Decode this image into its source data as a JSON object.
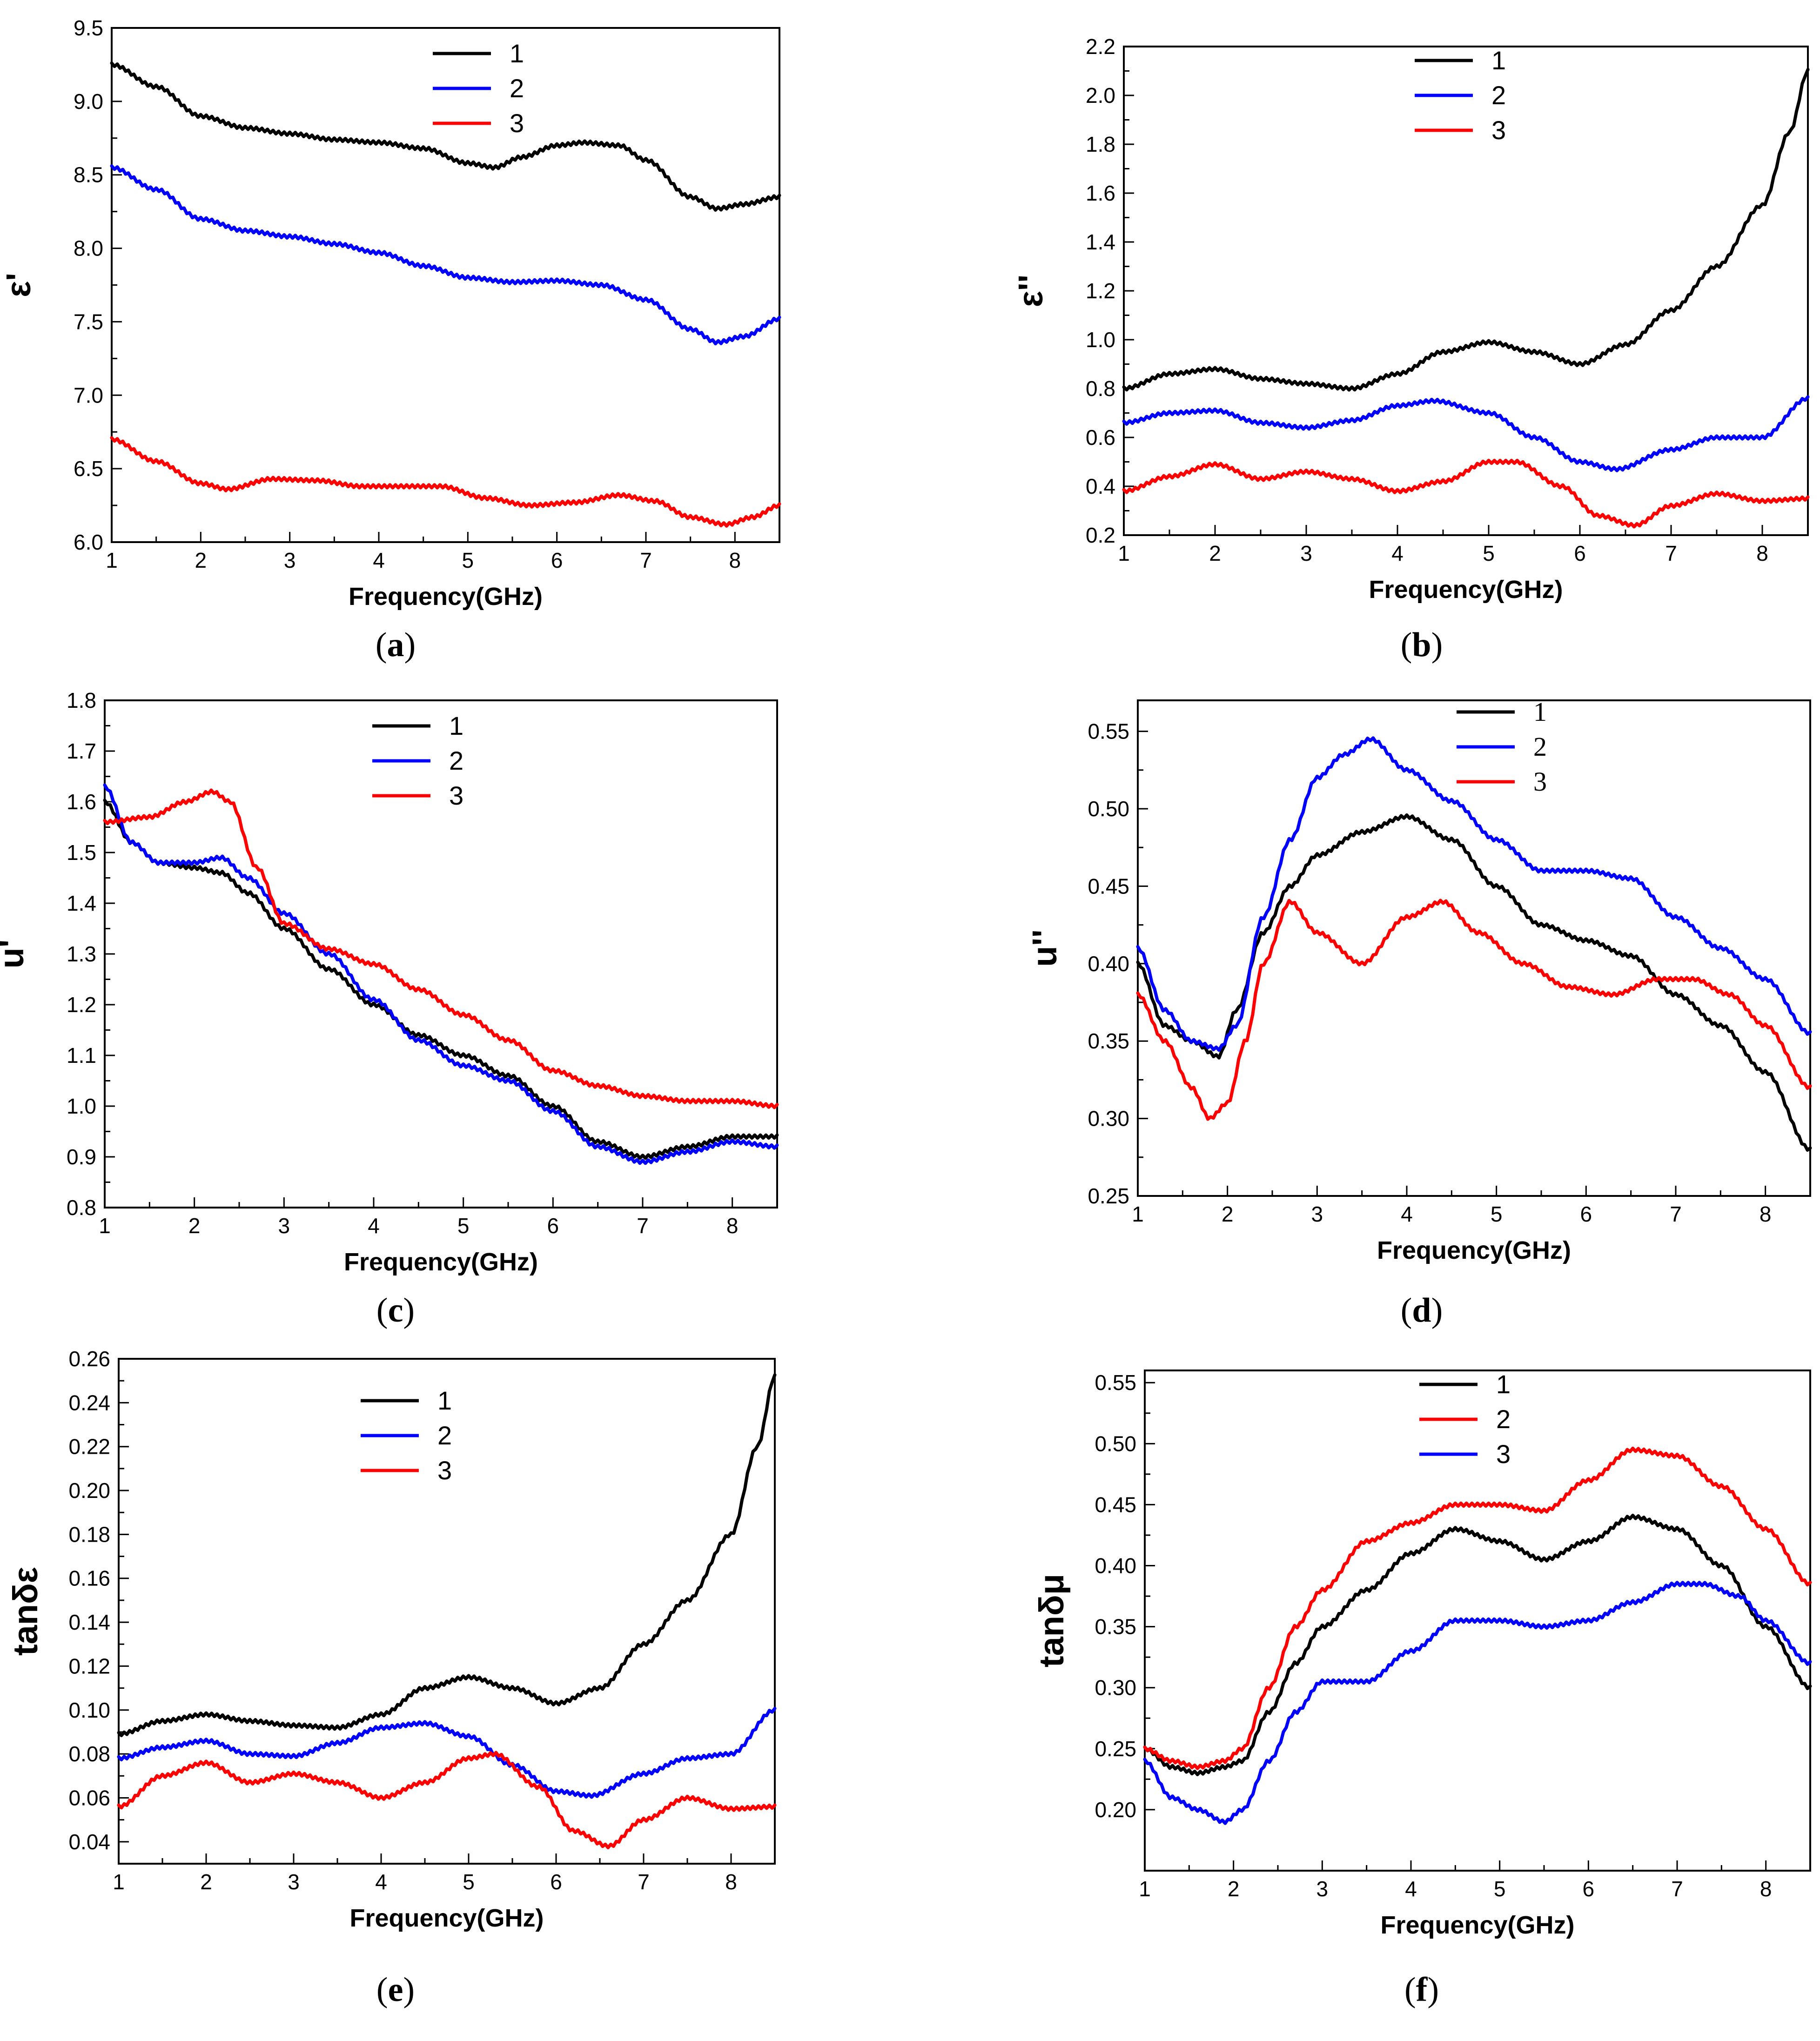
{
  "chart_data": [
    {
      "type": "line",
      "panel": "(a)",
      "caption_letter": "a",
      "xlabel": "Frequency(GHz)",
      "ylabel": "ε'",
      "xlim": [
        1,
        8.5
      ],
      "ylim": [
        6.0,
        9.5
      ],
      "xticks": [
        1,
        2,
        3,
        4,
        5,
        6,
        7,
        8
      ],
      "yticks": [
        6.0,
        6.5,
        7.0,
        7.5,
        8.0,
        8.5,
        9.0,
        9.5
      ],
      "ytick_decimals": 1,
      "legend_position": "top-center",
      "legend_font": "sans",
      "series": [
        {
          "name": "1",
          "color": "#000000",
          "x": [
            1,
            1.5,
            2,
            2.5,
            3,
            3.5,
            4,
            4.5,
            5,
            5.3,
            5.6,
            6,
            6.3,
            6.7,
            7,
            7.5,
            7.8,
            8.1,
            8.5
          ],
          "y": [
            9.25,
            9.1,
            8.9,
            8.82,
            8.78,
            8.74,
            8.72,
            8.68,
            8.58,
            8.55,
            8.62,
            8.7,
            8.72,
            8.7,
            8.6,
            8.35,
            8.27,
            8.3,
            8.35
          ]
        },
        {
          "name": "2",
          "color": "#0000ff",
          "x": [
            1,
            1.5,
            2,
            2.5,
            3,
            3.5,
            4,
            4.5,
            5,
            5.5,
            6,
            6.5,
            7,
            7.5,
            7.8,
            8.1,
            8.5
          ],
          "y": [
            8.55,
            8.4,
            8.2,
            8.12,
            8.08,
            8.03,
            7.97,
            7.88,
            7.8,
            7.77,
            7.78,
            7.75,
            7.65,
            7.45,
            7.36,
            7.4,
            7.52
          ]
        },
        {
          "name": "3",
          "color": "#ff0000",
          "x": [
            1,
            1.5,
            2,
            2.3,
            2.8,
            3.3,
            3.8,
            4.3,
            4.7,
            5.2,
            5.7,
            6.2,
            6.7,
            7.1,
            7.5,
            7.9,
            8.2,
            8.5
          ],
          "y": [
            6.7,
            6.55,
            6.4,
            6.36,
            6.43,
            6.42,
            6.38,
            6.38,
            6.38,
            6.3,
            6.25,
            6.27,
            6.32,
            6.28,
            6.17,
            6.12,
            6.17,
            6.25
          ]
        }
      ]
    },
    {
      "type": "line",
      "panel": "(b)",
      "caption_letter": "b",
      "xlabel": "Frequency(GHz)",
      "ylabel": "ε''",
      "xlim": [
        1,
        8.5
      ],
      "ylim": [
        0.2,
        2.2
      ],
      "xticks": [
        1,
        2,
        3,
        4,
        5,
        6,
        7,
        8
      ],
      "yticks": [
        0.2,
        0.4,
        0.6,
        0.8,
        1.0,
        1.2,
        1.4,
        1.6,
        1.8,
        2.0,
        2.2
      ],
      "ytick_decimals": 1,
      "legend_position": "top-center",
      "legend_font": "sans",
      "series": [
        {
          "name": "1",
          "color": "#000000",
          "x": [
            1,
            1.5,
            2,
            2.5,
            3,
            3.5,
            4,
            4.5,
            5,
            5.5,
            6,
            6.5,
            7,
            7.5,
            8,
            8.3,
            8.5
          ],
          "y": [
            0.8,
            0.86,
            0.88,
            0.84,
            0.82,
            0.8,
            0.86,
            0.95,
            0.99,
            0.95,
            0.9,
            0.98,
            1.12,
            1.3,
            1.55,
            1.85,
            2.1
          ]
        },
        {
          "name": "2",
          "color": "#0000ff",
          "x": [
            1,
            1.5,
            2,
            2.5,
            3,
            3.5,
            4,
            4.4,
            5,
            5.5,
            6,
            6.4,
            7,
            7.5,
            8,
            8.5
          ],
          "y": [
            0.66,
            0.7,
            0.71,
            0.66,
            0.64,
            0.67,
            0.73,
            0.75,
            0.7,
            0.6,
            0.5,
            0.47,
            0.55,
            0.6,
            0.6,
            0.76
          ]
        },
        {
          "name": "3",
          "color": "#ff0000",
          "x": [
            1,
            1.5,
            2,
            2.5,
            3,
            3.5,
            4,
            4.5,
            5,
            5.3,
            5.8,
            6.2,
            6.6,
            7,
            7.5,
            8,
            8.5
          ],
          "y": [
            0.38,
            0.44,
            0.49,
            0.43,
            0.46,
            0.43,
            0.38,
            0.42,
            0.5,
            0.5,
            0.4,
            0.28,
            0.24,
            0.32,
            0.37,
            0.34,
            0.35
          ]
        }
      ]
    },
    {
      "type": "line",
      "panel": "(c)",
      "caption_letter": "c",
      "xlabel": "Frequency(GHz)",
      "ylabel": "u'",
      "xlim": [
        1,
        8.5
      ],
      "ylim": [
        0.8,
        1.8
      ],
      "xticks": [
        1,
        2,
        3,
        4,
        5,
        6,
        7,
        8
      ],
      "yticks": [
        0.8,
        0.9,
        1.0,
        1.1,
        1.2,
        1.3,
        1.4,
        1.5,
        1.6,
        1.7,
        1.8
      ],
      "ytick_decimals": 1,
      "legend_position": "top-center",
      "legend_font": "sans",
      "series": [
        {
          "name": "1",
          "color": "#000000",
          "x": [
            1,
            1.3,
            1.6,
            2,
            2.3,
            2.6,
            3,
            3.5,
            4,
            4.5,
            5,
            5.5,
            6,
            6.5,
            7,
            7.5,
            8,
            8.5
          ],
          "y": [
            1.6,
            1.52,
            1.48,
            1.47,
            1.46,
            1.42,
            1.35,
            1.27,
            1.2,
            1.14,
            1.1,
            1.06,
            1.0,
            0.93,
            0.9,
            0.92,
            0.94,
            0.94
          ]
        },
        {
          "name": "2",
          "color": "#0000ff",
          "x": [
            1,
            1.3,
            1.6,
            2,
            2.3,
            2.6,
            3,
            3.5,
            4,
            4.5,
            5,
            5.5,
            6,
            6.5,
            7,
            7.5,
            8,
            8.5
          ],
          "y": [
            1.63,
            1.52,
            1.48,
            1.48,
            1.49,
            1.45,
            1.38,
            1.3,
            1.21,
            1.13,
            1.08,
            1.05,
            0.99,
            0.92,
            0.89,
            0.91,
            0.93,
            0.92
          ]
        },
        {
          "name": "3",
          "color": "#ff0000",
          "x": [
            1,
            1.5,
            1.9,
            2.2,
            2.4,
            2.7,
            3,
            3.5,
            4,
            4.5,
            5,
            5.5,
            6,
            6.5,
            7,
            7.5,
            8,
            8.5
          ],
          "y": [
            1.56,
            1.57,
            1.6,
            1.62,
            1.6,
            1.47,
            1.36,
            1.31,
            1.28,
            1.23,
            1.18,
            1.13,
            1.07,
            1.04,
            1.02,
            1.01,
            1.01,
            1.0
          ]
        }
      ]
    },
    {
      "type": "line",
      "panel": "(d)",
      "caption_letter": "d",
      "xlabel": "Frequency(GHz)",
      "ylabel": "u''",
      "xlim": [
        1,
        8.5
      ],
      "ylim": [
        0.25,
        0.57
      ],
      "xticks": [
        1,
        2,
        3,
        4,
        5,
        6,
        7,
        8
      ],
      "yticks": [
        0.25,
        0.3,
        0.35,
        0.4,
        0.45,
        0.5,
        0.55
      ],
      "ytick_decimals": 2,
      "legend_position": "top-right",
      "legend_font": "serif",
      "series": [
        {
          "name": "1",
          "color": "#000000",
          "x": [
            1,
            1.3,
            1.6,
            1.9,
            2.1,
            2.4,
            2.7,
            3,
            3.5,
            4,
            4.5,
            5,
            5.5,
            6,
            6.5,
            7,
            7.5,
            8,
            8.5
          ],
          "y": [
            0.4,
            0.36,
            0.35,
            0.34,
            0.37,
            0.42,
            0.45,
            0.47,
            0.485,
            0.495,
            0.48,
            0.45,
            0.425,
            0.415,
            0.405,
            0.38,
            0.36,
            0.33,
            0.28
          ]
        },
        {
          "name": "2",
          "color": "#0000ff",
          "x": [
            1,
            1.3,
            1.6,
            1.9,
            2.1,
            2.4,
            2.7,
            3,
            3.3,
            3.6,
            4,
            4.5,
            5,
            5.5,
            6,
            6.5,
            7,
            7.5,
            8,
            8.5
          ],
          "y": [
            0.41,
            0.37,
            0.35,
            0.345,
            0.36,
            0.43,
            0.48,
            0.52,
            0.535,
            0.545,
            0.525,
            0.505,
            0.48,
            0.46,
            0.46,
            0.455,
            0.43,
            0.41,
            0.39,
            0.355
          ]
        },
        {
          "name": "3",
          "color": "#ff0000",
          "x": [
            1,
            1.3,
            1.6,
            1.8,
            2,
            2.2,
            2.4,
            2.7,
            3,
            3.5,
            4,
            4.4,
            4.8,
            5.3,
            5.8,
            6.3,
            6.8,
            7.2,
            7.6,
            8,
            8.5
          ],
          "y": [
            0.38,
            0.35,
            0.32,
            0.3,
            0.31,
            0.35,
            0.4,
            0.44,
            0.42,
            0.4,
            0.43,
            0.44,
            0.42,
            0.4,
            0.385,
            0.38,
            0.39,
            0.39,
            0.38,
            0.36,
            0.32
          ]
        }
      ]
    },
    {
      "type": "line",
      "panel": "(e)",
      "caption_letter": "e",
      "xlabel": "Frequency(GHz)",
      "ylabel": "tanδε",
      "xlim": [
        1,
        8.5
      ],
      "ylim": [
        0.03,
        0.26
      ],
      "xticks": [
        1,
        2,
        3,
        4,
        5,
        6,
        7,
        8
      ],
      "yticks": [
        0.04,
        0.06,
        0.08,
        0.1,
        0.12,
        0.14,
        0.16,
        0.18,
        0.2,
        0.22,
        0.24,
        0.26
      ],
      "ytick_decimals": 2,
      "legend_position": "top-center",
      "legend_font": "sans",
      "series": [
        {
          "name": "1",
          "color": "#000000",
          "x": [
            1,
            1.5,
            2,
            2.5,
            3,
            3.5,
            4,
            4.5,
            5,
            5.5,
            6,
            6.5,
            7,
            7.5,
            8,
            8.3,
            8.5
          ],
          "y": [
            0.089,
            0.095,
            0.098,
            0.095,
            0.093,
            0.092,
            0.098,
            0.11,
            0.115,
            0.11,
            0.103,
            0.11,
            0.13,
            0.15,
            0.18,
            0.22,
            0.252
          ]
        },
        {
          "name": "2",
          "color": "#0000ff",
          "x": [
            1,
            1.5,
            2,
            2.5,
            3,
            3.5,
            4,
            4.5,
            5,
            5.5,
            6,
            6.4,
            7,
            7.5,
            8,
            8.5
          ],
          "y": [
            0.078,
            0.083,
            0.086,
            0.08,
            0.079,
            0.085,
            0.092,
            0.094,
            0.088,
            0.075,
            0.063,
            0.061,
            0.071,
            0.078,
            0.08,
            0.1
          ]
        },
        {
          "name": "3",
          "color": "#ff0000",
          "x": [
            1,
            1.5,
            2,
            2.5,
            3,
            3.5,
            4,
            4.5,
            5,
            5.3,
            5.8,
            6.2,
            6.6,
            7,
            7.5,
            8,
            8.5
          ],
          "y": [
            0.056,
            0.07,
            0.076,
            0.067,
            0.071,
            0.067,
            0.06,
            0.067,
            0.078,
            0.08,
            0.065,
            0.045,
            0.038,
            0.05,
            0.06,
            0.055,
            0.056
          ]
        }
      ]
    },
    {
      "type": "line",
      "panel": "(f)",
      "caption_letter": "f",
      "xlabel": "Frequency(GHz)",
      "ylabel": "tanδμ",
      "xlim": [
        1,
        8.5
      ],
      "ylim": [
        0.15,
        0.56
      ],
      "xticks": [
        1,
        2,
        3,
        4,
        5,
        6,
        7,
        8
      ],
      "yticks": [
        0.2,
        0.25,
        0.3,
        0.35,
        0.4,
        0.45,
        0.5,
        0.55
      ],
      "ytick_decimals": 2,
      "legend_position": "top-center",
      "legend_font": "sans",
      "series": [
        {
          "name": "1",
          "color": "#000000",
          "x": [
            1,
            1.3,
            1.6,
            1.9,
            2.1,
            2.4,
            2.7,
            3,
            3.5,
            4,
            4.5,
            5,
            5.5,
            6,
            6.5,
            7,
            7.5,
            8,
            8.5
          ],
          "y": [
            0.25,
            0.235,
            0.23,
            0.235,
            0.24,
            0.28,
            0.32,
            0.35,
            0.38,
            0.41,
            0.43,
            0.42,
            0.405,
            0.42,
            0.44,
            0.43,
            0.4,
            0.35,
            0.3
          ]
        },
        {
          "name": "2",
          "color": "#ff0000",
          "x": [
            1,
            1.3,
            1.6,
            1.9,
            2.1,
            2.4,
            2.7,
            3,
            3.5,
            4,
            4.5,
            5,
            5.5,
            6,
            6.5,
            7,
            7.5,
            8,
            8.5
          ],
          "y": [
            0.25,
            0.24,
            0.235,
            0.24,
            0.25,
            0.3,
            0.35,
            0.38,
            0.42,
            0.435,
            0.45,
            0.45,
            0.445,
            0.47,
            0.495,
            0.49,
            0.465,
            0.43,
            0.385
          ]
        },
        {
          "name": "3",
          "color": "#0000ff",
          "x": [
            1,
            1.3,
            1.6,
            1.9,
            2.1,
            2.4,
            2.7,
            3,
            3.5,
            4,
            4.5,
            5,
            5.5,
            6,
            6.5,
            7,
            7.3,
            7.7,
            8,
            8.5
          ],
          "y": [
            0.24,
            0.21,
            0.2,
            0.19,
            0.2,
            0.24,
            0.28,
            0.305,
            0.305,
            0.33,
            0.355,
            0.355,
            0.35,
            0.355,
            0.37,
            0.385,
            0.385,
            0.375,
            0.355,
            0.32
          ]
        }
      ]
    }
  ]
}
